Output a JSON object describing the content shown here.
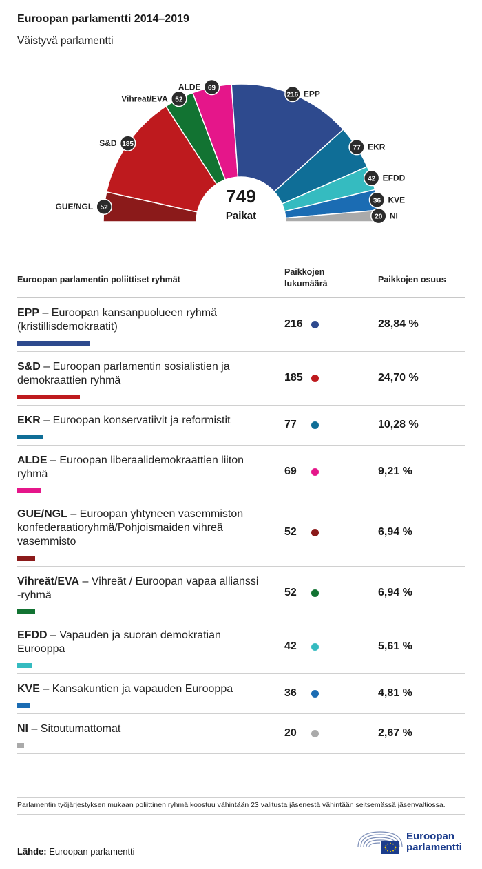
{
  "title": "Euroopan parlamentti 2014–2019",
  "subtitle": "Väistyvä parlamentti",
  "chart_data": {
    "type": "pie",
    "variant": "half-donut (hemicycle)",
    "total": 749,
    "total_label": "Paikat",
    "segments": [
      {
        "label": "GUE/NGL",
        "value": 52,
        "color": "#8b1a1a"
      },
      {
        "label": "S&D",
        "value": 185,
        "color": "#be1a1e"
      },
      {
        "label": "Vihreät/EVA",
        "value": 52,
        "color": "#127332"
      },
      {
        "label": "ALDE",
        "value": 69,
        "color": "#e5168a"
      },
      {
        "label": "EPP",
        "value": 216,
        "color": "#2e4a8e"
      },
      {
        "label": "EKR",
        "value": 77,
        "color": "#0f6e97"
      },
      {
        "label": "EFDD",
        "value": 42,
        "color": "#35bbc0"
      },
      {
        "label": "KVE",
        "value": 36,
        "color": "#1b6cb3"
      },
      {
        "label": "NI",
        "value": 20,
        "color": "#aaaaaa"
      }
    ]
  },
  "table": {
    "headers": [
      "Euroopan parlamentin poliittiset ryhmät",
      "Paikkojen lukumäärä",
      "Paikkojen osuus"
    ],
    "rows": [
      {
        "abbr": "EPP",
        "name": " – Euroopan kansanpuolueen ryhmä (kristillisdemokraatit)",
        "seats": "216",
        "share": "28,84 %",
        "color": "#2e4a8e",
        "fraction": 0.2884
      },
      {
        "abbr": "S&D",
        "name": " – Euroopan parlamentin sosialistien ja demokraattien ryhmä",
        "seats": "185",
        "share": "24,70 %",
        "color": "#be1a1e",
        "fraction": 0.247
      },
      {
        "abbr": "EKR",
        "name": " – Euroopan konservatiivit ja reformistit",
        "seats": "77",
        "share": "10,28 %",
        "color": "#0f6e97",
        "fraction": 0.1028
      },
      {
        "abbr": "ALDE",
        "name": " – Euroopan liberaalidemokraattien liiton ryhmä",
        "seats": "69",
        "share": "9,21 %",
        "color": "#e5168a",
        "fraction": 0.0921
      },
      {
        "abbr": "GUE/NGL",
        "name": " – Euroopan yhtyneen vasemmiston konfederaatioryhmä/Pohjoismaiden vihreä vasemmisto",
        "seats": "52",
        "share": "6,94 %",
        "color": "#8b1a1a",
        "fraction": 0.0694
      },
      {
        "abbr": "Vihreät/EVA",
        "name": " – Vihreät / Euroopan vapaa allianssi -ryhmä",
        "seats": "52",
        "share": "6,94 %",
        "color": "#127332",
        "fraction": 0.0694
      },
      {
        "abbr": "EFDD",
        "name": " – Vapauden ja suoran demokratian Eurooppa",
        "seats": "42",
        "share": "5,61 %",
        "color": "#35bbc0",
        "fraction": 0.0561
      },
      {
        "abbr": "KVE",
        "name": " – Kansakuntien ja vapauden Eurooppa",
        "seats": "36",
        "share": "4,81 %",
        "color": "#1b6cb3",
        "fraction": 0.0481
      },
      {
        "abbr": "NI",
        "name": " – Sitoutumattomat",
        "seats": "20",
        "share": "2,67 %",
        "color": "#aaaaaa",
        "fraction": 0.0267
      }
    ]
  },
  "footnote": "Parlamentin työjärjestyksen mukaan poliittinen ryhmä koostuu vähintään 23 valitusta jäsenestä vähintään seitsemässä jäsenvaltiossa.",
  "source_label": "Lähde:",
  "source_value": "Euroopan parlamentti",
  "logo_text_1": "Euroopan",
  "logo_text_2": "parlamentti"
}
